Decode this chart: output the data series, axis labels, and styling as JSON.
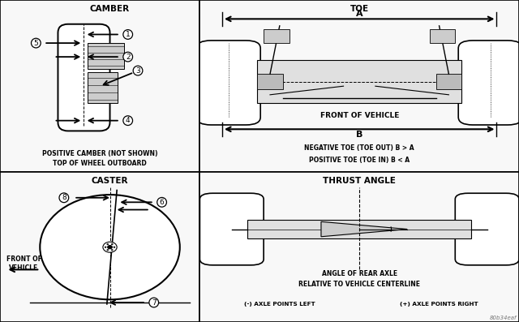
{
  "bg_color": "#f0f0f0",
  "panel_bg": "#f5f5f5",
  "border_color": "#000000",
  "text_color": "#000000",
  "panels": {
    "top_left": {
      "title": "CAMBER",
      "caption1": "POSITIVE CAMBER (NOT SHOWN)",
      "caption2": "TOP OF WHEEL OUTBOARD"
    },
    "top_right": {
      "title": "TOE",
      "label_a": "A",
      "label_b": "B",
      "caption1": "FRONT OF VEHICLE",
      "caption2": "NEGATIVE TOE (TOE OUT) B > A",
      "caption3": "POSITIVE TOE (TOE IN) B < A"
    },
    "bottom_left": {
      "title": "CASTER",
      "caption1": "FRONT OF",
      "caption2": "VEHICLE"
    },
    "bottom_right": {
      "title": "THRUST ANGLE",
      "caption1": "ANGLE OF REAR AXLE",
      "caption2": "RELATIVE TO VEHICLE CENTERLINE",
      "caption3": "(-) AXLE POINTS LEFT",
      "caption4": "(+) AXLE POINTS RIGHT"
    }
  },
  "watermark": "80b34eaf"
}
